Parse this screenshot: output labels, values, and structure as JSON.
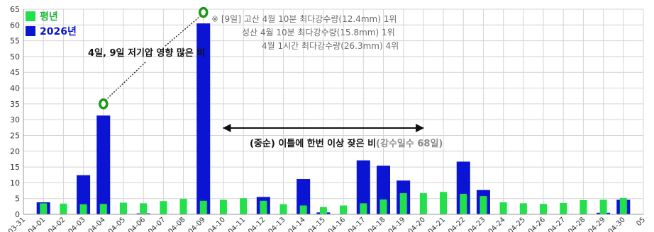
{
  "chart_data": {
    "type": "bar",
    "categories": [
      "04-01",
      "04-02",
      "04-03",
      "04-04",
      "04-05",
      "04-06",
      "04-07",
      "04-08",
      "04-09",
      "04-10",
      "04-11",
      "04-12",
      "04-13",
      "04-14",
      "04-15",
      "04-16",
      "04-17",
      "04-18",
      "04-19",
      "04-20",
      "04-21",
      "04-22",
      "04-23",
      "04-24",
      "04-25",
      "04-26",
      "04-27",
      "04-28",
      "04-29",
      "04-30"
    ],
    "x_tick_labels": [
      "03-31",
      "04-01",
      "04-02",
      "04-03",
      "04-04",
      "04-05",
      "04-06",
      "04-07",
      "04-08",
      "04-09",
      "04-10",
      "04-11",
      "04-12",
      "04-13",
      "04-14",
      "04-15",
      "04-16",
      "04-17",
      "04-18",
      "04-19",
      "04-20",
      "04-21",
      "04-22",
      "04-23",
      "04-24",
      "04-25",
      "04-26",
      "04-27",
      "04-28",
      "04-29",
      "04-30",
      "05"
    ],
    "series": [
      {
        "name": "2026년",
        "color": "#0a14d2",
        "values": [
          3.8,
          0,
          12.4,
          31.3,
          0,
          0.3,
          0,
          0,
          60.5,
          0,
          0,
          5.5,
          0,
          11.2,
          0.6,
          0,
          17.1,
          15.4,
          10.7,
          0,
          0,
          16.7,
          7.7,
          0,
          0,
          0,
          0,
          0,
          0.5,
          4.6
        ]
      },
      {
        "name": "평년",
        "color": "#22e04a",
        "values": [
          3.5,
          3.4,
          3.2,
          3.3,
          3.7,
          3.5,
          4.2,
          4.9,
          4.3,
          4.6,
          5.1,
          4.3,
          3.2,
          2.8,
          2.3,
          2.8,
          3.5,
          4.7,
          6.7,
          6.7,
          7.1,
          6.5,
          5.8,
          3.8,
          3.5,
          3.3,
          3.6,
          4.5,
          4.6,
          5.2
        ]
      }
    ],
    "ylim": [
      0,
      65
    ],
    "yticks": [
      0,
      5,
      10,
      15,
      20,
      25,
      30,
      35,
      40,
      45,
      50,
      55,
      60,
      65
    ],
    "grid": true,
    "legend_position": "top-left",
    "xlabel": "",
    "ylabel": "",
    "markers": [
      {
        "category": "04-04",
        "value": 35
      },
      {
        "category": "04-09",
        "value": 64
      }
    ],
    "annotations": {
      "callout_main": "4일, 9일 저기압 영향 많은 비",
      "note_lines": [
        "※ [9일] 고산 4월 10분 최다강수량(12.4mm) 1위",
        "성산 4월 10분 최다강수량(15.8mm) 1위",
        "4월 1시간 최다강수량(26.3mm) 4위"
      ],
      "range_label": "(중순) 이틀에 한번 이상 잦은 비",
      "range_label_extra": "(강수일수 68일)",
      "range_arrow": {
        "from": "04-10",
        "to": "04-20"
      }
    }
  }
}
